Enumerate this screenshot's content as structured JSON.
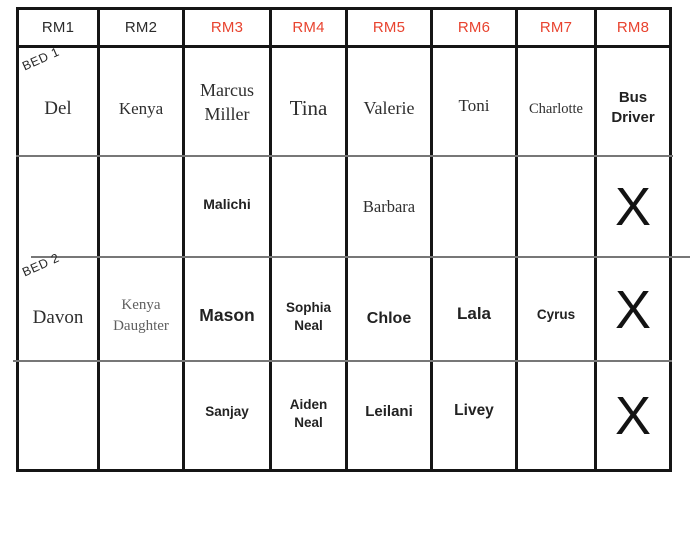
{
  "colors": {
    "header_red": "#e8432f",
    "grid_black": "#151515",
    "divider_gray": "#777777"
  },
  "headers": [
    "RM1",
    "RM2",
    "RM3",
    "RM4",
    "RM5",
    "RM6",
    "RM7",
    "RM8"
  ],
  "beds": {
    "bed1": "BED 1",
    "bed2": "BED 2"
  },
  "rows": [
    {
      "cells": [
        "Del",
        "Kenya",
        "Marcus\nMiller",
        "Tina",
        "Valerie",
        "Toni",
        "Charlotte",
        "Bus\nDriver"
      ]
    },
    {
      "cells": [
        "",
        "",
        "Malichi",
        "",
        "Barbara",
        "",
        "",
        "X"
      ]
    },
    {
      "cells": [
        "Davon",
        "Kenya\nDaughter",
        "Mason",
        "Sophia\nNeal",
        "Chloe",
        "Lala",
        "Cyrus",
        "X"
      ]
    },
    {
      "cells": [
        "",
        "",
        "Sanjay",
        "Aiden\nNeal",
        "Leilani",
        "Livey",
        "",
        "X"
      ]
    }
  ]
}
